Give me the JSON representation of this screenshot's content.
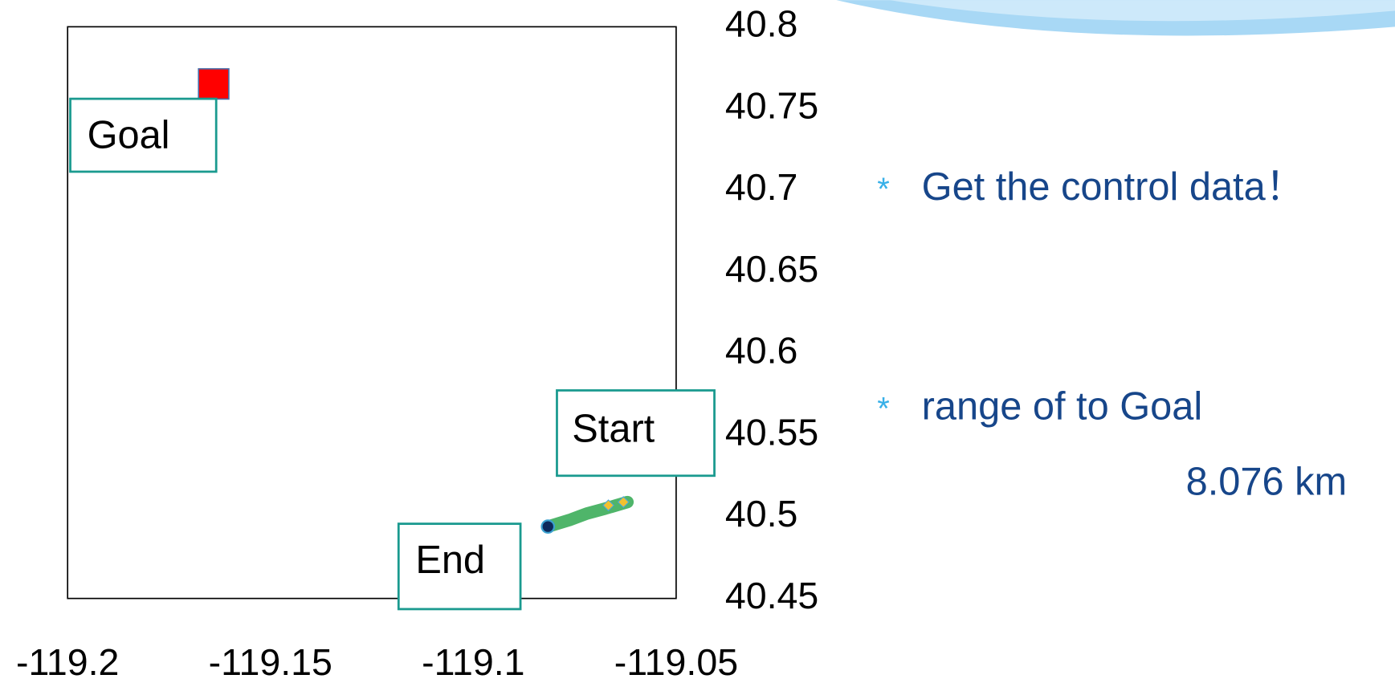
{
  "chart_data": {
    "type": "scatter",
    "xlim": [
      -119.2,
      -119.05
    ],
    "xticks": [
      -119.2,
      -119.15,
      -119.1,
      -119.05
    ],
    "ylim": [
      40.45,
      40.8
    ],
    "yticks": [
      40.45,
      40.5,
      40.55,
      40.6,
      40.65,
      40.7,
      40.75,
      40.8
    ],
    "series": [
      {
        "marker": "line",
        "color": "#4fb56a",
        "x": [
          -119.0816,
          -119.0763,
          -119.072,
          -119.0675,
          -119.062
        ],
        "values": [
          40.494,
          40.498,
          40.502,
          40.505,
          40.509
        ]
      },
      {
        "marker": "diamond",
        "color": "#f2c12e",
        "x": [
          -119.0667,
          -119.063
        ],
        "values": [
          40.507,
          40.509
        ]
      },
      {
        "marker": "circle",
        "color": "#0d2a5c",
        "x": [
          -119.0816
        ],
        "values": [
          40.494
        ]
      },
      {
        "marker": "square",
        "color": "#ff0000",
        "x": [
          -119.164
        ],
        "values": [
          40.765
        ]
      }
    ],
    "annotations": [
      "Goal",
      "Start",
      "End"
    ]
  },
  "bullets": [
    "Get the control data！",
    "range of to Goal",
    "8.076 km"
  ]
}
